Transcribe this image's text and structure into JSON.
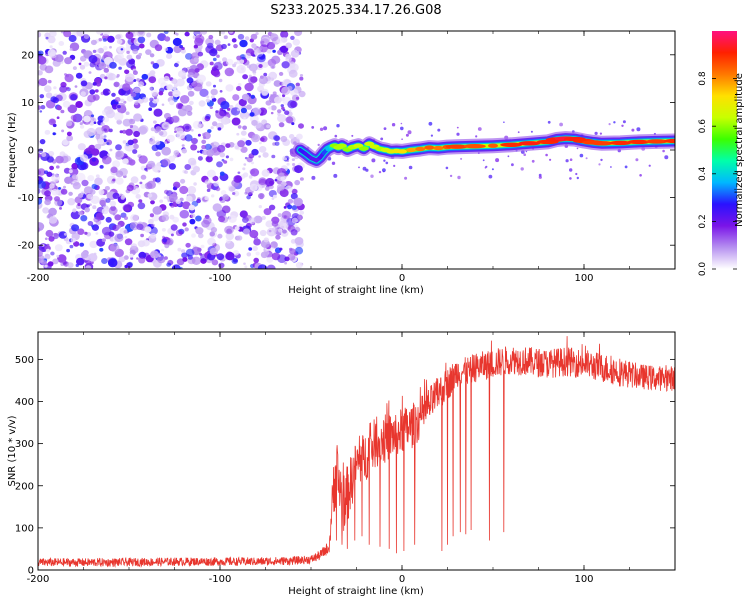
{
  "figure": {
    "title": "S233.2025.334.17.26.G08"
  },
  "chart_data": [
    {
      "type": "heatmap",
      "title": "",
      "xlabel": "Height of straight line (km)",
      "ylabel": "Frequency (Hz)",
      "xlim": [
        -200,
        150
      ],
      "ylim": [
        -25,
        25
      ],
      "x_ticks": [
        -200,
        -100,
        0,
        100
      ],
      "y_ticks": [
        -20,
        -10,
        0,
        10,
        20
      ],
      "noise_region_x": [
        -200,
        -57
      ],
      "signal_track": {
        "x": [
          -56,
          -53,
          -50,
          -47,
          -45,
          -43,
          -41,
          -39,
          -37,
          -35,
          -33,
          -30,
          -27,
          -24,
          -21,
          -18,
          -15,
          -12,
          -9,
          -6,
          -3,
          0,
          5,
          10,
          15,
          20,
          25,
          30,
          40,
          50,
          60,
          70,
          80,
          85,
          90,
          95,
          100,
          105,
          110,
          120,
          130,
          140,
          150
        ],
        "freq": [
          0,
          -0.8,
          -1.7,
          -2.2,
          -1.6,
          -0.6,
          0.2,
          0.6,
          0.9,
          0.5,
          0.9,
          0.1,
          0.6,
          0.9,
          0.3,
          1.3,
          0.7,
          0.2,
          0,
          -0.3,
          -0.2,
          -0.3,
          0.0,
          0.2,
          0.5,
          0.4,
          0.6,
          0.7,
          0.8,
          0.9,
          1.1,
          1.4,
          1.7,
          2.2,
          2.4,
          2.3,
          1.9,
          1.6,
          1.4,
          1.5,
          1.7,
          1.8,
          1.9
        ],
        "amplitude": [
          0.35,
          0.35,
          0.3,
          0.28,
          0.3,
          0.35,
          0.45,
          0.55,
          0.6,
          0.62,
          0.62,
          0.6,
          0.62,
          0.65,
          0.6,
          0.65,
          0.65,
          0.62,
          0.65,
          0.68,
          0.7,
          0.72,
          0.78,
          0.82,
          0.85,
          0.82,
          0.85,
          0.88,
          0.86,
          0.85,
          0.9,
          0.92,
          0.9,
          0.92,
          0.95,
          0.92,
          0.9,
          0.88,
          0.88,
          0.9,
          0.9,
          0.88,
          0.9
        ]
      },
      "colorbar": {
        "label": "Normalized spectral amplitude",
        "range": [
          0,
          1
        ],
        "ticks": [
          0.0,
          0.2,
          0.4,
          0.6,
          0.8
        ],
        "tick_labels": [
          "0.0",
          "0.2",
          "0.4",
          "0.6",
          "0.8"
        ],
        "colors": [
          "#ffffff",
          "#b690f0",
          "#7a14e8",
          "#2a12ff",
          "#00b8ff",
          "#00ffaa",
          "#3cff00",
          "#c8ff00",
          "#ffe000",
          "#ff7800",
          "#ff2000",
          "#ff1080"
        ]
      }
    },
    {
      "type": "line",
      "title": "",
      "xlabel": "Height of straight line (km)",
      "ylabel": "SNR (10 * v/v)",
      "xlim": [
        -200,
        150
      ],
      "ylim": [
        0,
        565
      ],
      "x_ticks": [
        -200,
        -100,
        0,
        100
      ],
      "y_ticks": [
        0,
        100,
        200,
        300,
        400,
        500
      ],
      "color": "#e8362e",
      "series": [
        {
          "name": "SNR",
          "x": [
            -200,
            -160,
            -120,
            -80,
            -60,
            -50,
            -45,
            -40,
            -37,
            -35,
            -32,
            -30,
            -25,
            -20,
            -15,
            -10,
            -5,
            0,
            5,
            10,
            15,
            20,
            25,
            30,
            35,
            40,
            50,
            60,
            70,
            80,
            90,
            100,
            110,
            120,
            130,
            140,
            150
          ],
          "mean": [
            18,
            18,
            20,
            20,
            22,
            25,
            35,
            55,
            230,
            210,
            160,
            180,
            250,
            270,
            300,
            310,
            320,
            330,
            340,
            360,
            390,
            420,
            440,
            470,
            470,
            480,
            490,
            500,
            495,
            490,
            495,
            490,
            480,
            470,
            460,
            455,
            455
          ],
          "spread": [
            10,
            10,
            10,
            10,
            10,
            10,
            12,
            15,
            90,
            80,
            70,
            70,
            60,
            60,
            60,
            60,
            55,
            55,
            55,
            50,
            45,
            40,
            40,
            35,
            35,
            35,
            35,
            35,
            35,
            35,
            35,
            35,
            35,
            35,
            30,
            30,
            30
          ],
          "dropouts": [
            {
              "x": -36,
              "y": 70
            },
            {
              "x": -33,
              "y": 60
            },
            {
              "x": -30,
              "y": 50
            },
            {
              "x": -26,
              "y": 70
            },
            {
              "x": -22,
              "y": 80
            },
            {
              "x": -18,
              "y": 60
            },
            {
              "x": -12,
              "y": 55
            },
            {
              "x": -7,
              "y": 50
            },
            {
              "x": -3,
              "y": 40
            },
            {
              "x": 1,
              "y": 45
            },
            {
              "x": 7,
              "y": 60
            },
            {
              "x": 22,
              "y": 45
            },
            {
              "x": 25,
              "y": 60
            },
            {
              "x": 28,
              "y": 80
            },
            {
              "x": 32,
              "y": 90
            },
            {
              "x": 35,
              "y": 85
            },
            {
              "x": 38,
              "y": 95
            },
            {
              "x": 48,
              "y": 70
            },
            {
              "x": 56,
              "y": 90
            }
          ]
        }
      ]
    }
  ]
}
